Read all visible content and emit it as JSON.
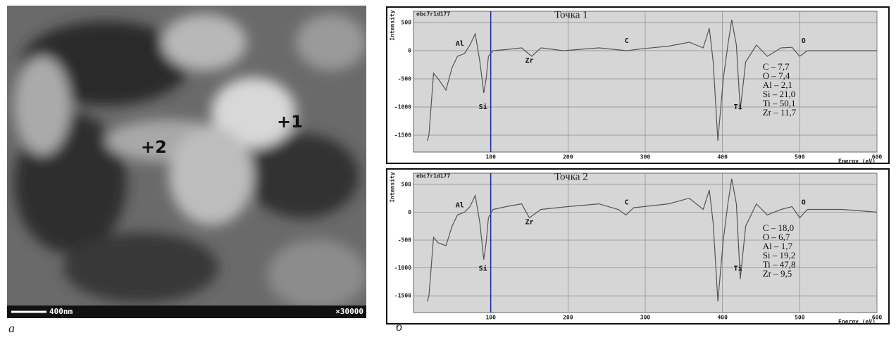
{
  "image": {
    "points": [
      "+1",
      "+2"
    ],
    "scale_bar": "400nm",
    "magnification": "×30000"
  },
  "panel_labels": [
    "а",
    "б"
  ],
  "chart_data": [
    {
      "type": "line",
      "title": "Точка 1",
      "file_label": "ebc7r1d177",
      "y_label": "Intensity",
      "x_label": "Energy (eV)",
      "x": [
        18,
        20,
        26,
        32,
        42,
        50,
        57,
        66,
        73,
        80,
        86,
        91,
        94,
        97,
        103,
        120,
        140,
        153,
        165,
        194,
        240,
        276,
        300,
        330,
        357,
        375,
        383,
        388,
        394,
        401,
        407,
        412,
        418,
        423,
        430,
        444,
        458,
        476,
        490,
        500,
        510,
        555,
        600
      ],
      "values": [
        -1600,
        -1500,
        -400,
        -500,
        -700,
        -300,
        -100,
        -50,
        100,
        300,
        -200,
        -750,
        -500,
        -100,
        0,
        20,
        50,
        -100,
        50,
        0,
        50,
        0,
        40,
        80,
        150,
        50,
        400,
        -200,
        -1600,
        -500,
        100,
        550,
        100,
        -1050,
        -200,
        100,
        -100,
        50,
        60,
        -100,
        0,
        0,
        0
      ],
      "color": "#555555",
      "xlim": [
        0,
        600
      ],
      "ylim": [
        -1800,
        700
      ],
      "xticks": [
        100,
        200,
        300,
        400,
        500,
        600
      ],
      "yticks": [
        -1500,
        -1000,
        -500,
        0,
        500
      ],
      "grid": true,
      "peak_labels": [
        "Al",
        "Si",
        "Zr",
        "C",
        "Ti",
        "O"
      ],
      "composition": [
        "C – 7,7",
        "O – 7,4",
        "Al – 2,1",
        "Si – 21,0",
        "Ti – 50,1",
        "Zr – 11,7"
      ]
    },
    {
      "type": "line",
      "title": "Точка 2",
      "file_label": "ebc7r1d177",
      "y_label": "Intensity",
      "x_label": "Energy (eV)",
      "x": [
        18,
        20,
        26,
        32,
        42,
        50,
        57,
        66,
        73,
        80,
        86,
        91,
        94,
        97,
        103,
        120,
        140,
        150,
        165,
        200,
        240,
        265,
        275,
        285,
        330,
        357,
        375,
        383,
        388,
        394,
        401,
        407,
        412,
        418,
        423,
        430,
        444,
        458,
        476,
        490,
        500,
        510,
        555,
        600
      ],
      "values": [
        -1600,
        -1500,
        -450,
        -550,
        -600,
        -250,
        -50,
        0,
        100,
        300,
        -200,
        -850,
        -550,
        -100,
        50,
        100,
        150,
        -100,
        50,
        100,
        150,
        50,
        -50,
        80,
        150,
        250,
        50,
        400,
        -200,
        -1600,
        -500,
        150,
        600,
        150,
        -1200,
        -250,
        150,
        -50,
        50,
        100,
        -100,
        50,
        50,
        0
      ],
      "color": "#555555",
      "xlim": [
        0,
        600
      ],
      "ylim": [
        -1800,
        700
      ],
      "xticks": [
        100,
        200,
        300,
        400,
        500,
        600
      ],
      "yticks": [
        -1500,
        -1000,
        -500,
        0,
        500
      ],
      "grid": true,
      "peak_labels": [
        "Al",
        "Si",
        "Zr",
        "C",
        "Ti",
        "O"
      ],
      "composition": [
        "C – 18,0",
        "O – 6,7",
        "Al – 1,7",
        "Si – 19,2",
        "Ti – 47,8",
        "Zr – 9,5"
      ]
    }
  ]
}
